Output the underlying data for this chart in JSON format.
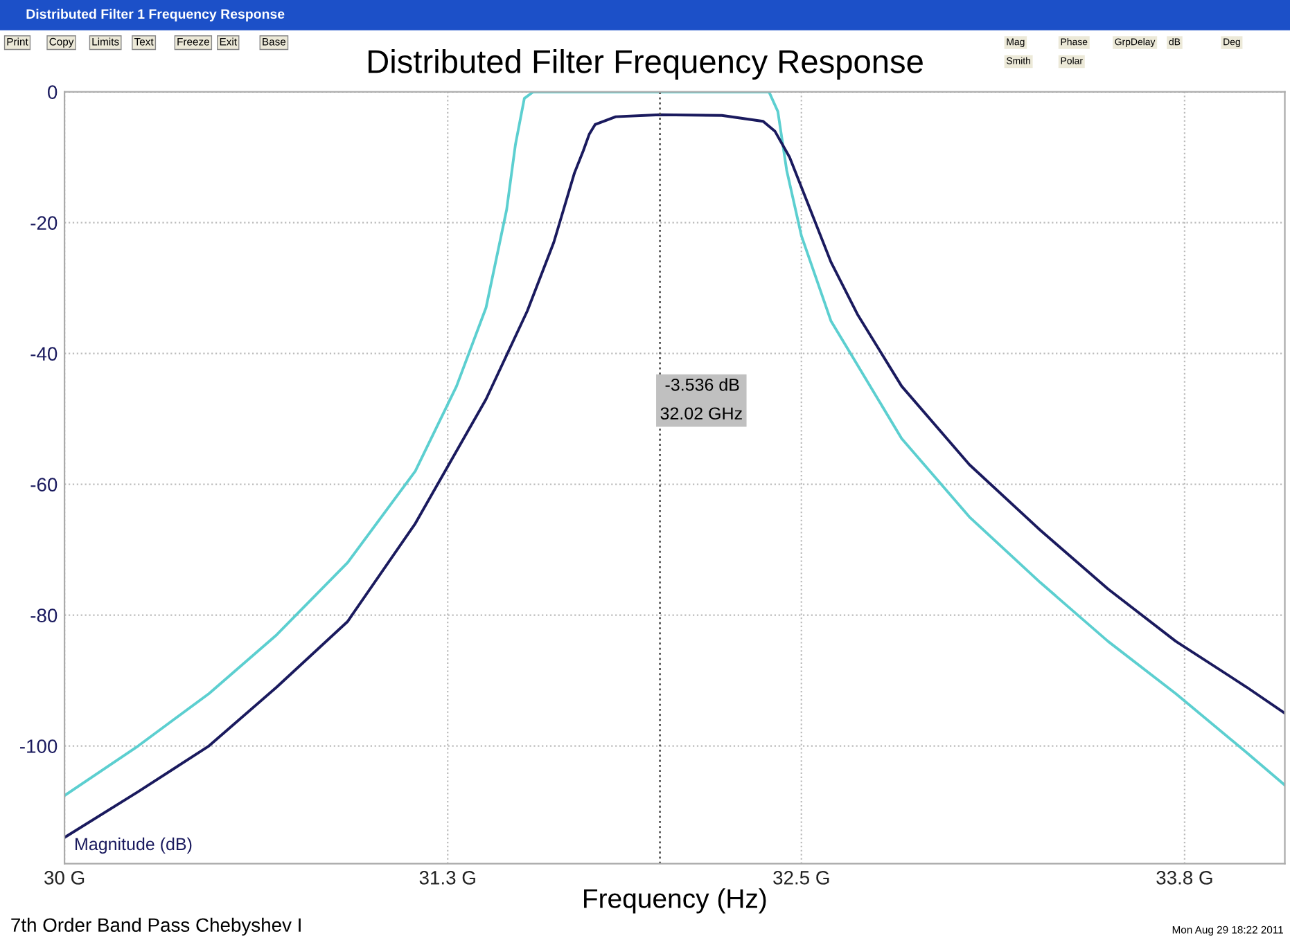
{
  "chart_data": {
    "type": "line",
    "title": "Distributed Filter Frequency Response",
    "xlabel": "Frequency (Hz)",
    "annotations": [
      "Distributed Filter 1 Frequency Response",
      "Print",
      "Copy",
      "Limits",
      "Text",
      "Freeze",
      "Exit",
      "Base",
      "Mag",
      "Phase",
      "GrpDelay",
      "dB",
      "Deg",
      "Smith",
      "Polar",
      "7th Order Band Pass Chebyshev I",
      "Mon Aug 29 18:22 2011"
    ],
    "xlim": [
      30,
      34.14
    ],
    "ylim": [
      -118,
      0
    ],
    "xticks": [
      {
        "value": 30,
        "label": "30 G"
      },
      {
        "value": 31.3,
        "label": "31.3 G"
      },
      {
        "value": 32.5,
        "label": "32.5 G"
      },
      {
        "value": 33.8,
        "label": "33.8 G"
      }
    ],
    "yticks": [
      0,
      -20,
      -40,
      -60,
      -80,
      -100
    ],
    "grid": true,
    "legend": false,
    "marker": "none",
    "line_style": "solid",
    "ref_lines": [
      {
        "axis": "x",
        "value": 32.02,
        "label": "-3.536 dB\n32.02 GHz",
        "color": "#555555",
        "line_style": "dotted"
      }
    ],
    "series": [
      {
        "name": null,
        "color": "#5ccfd0",
        "x": [
          30.0,
          30.25,
          30.49,
          30.72,
          30.96,
          31.19,
          31.33,
          31.43,
          31.5,
          31.53,
          31.56,
          31.59,
          32.39,
          32.42,
          32.45,
          32.5,
          32.6,
          32.84,
          33.07,
          33.31,
          33.54,
          33.77,
          34.01,
          34.14
        ],
        "values": [
          -107.6,
          -100,
          -92,
          -83,
          -72,
          -58,
          -45,
          -33,
          -18,
          -8,
          -1,
          0,
          0,
          -3,
          -12,
          -22,
          -35,
          -53,
          -65,
          -75,
          -84,
          -92,
          -101,
          -106
        ]
      },
      {
        "name": "Magnitude (dB)",
        "color": "#1a1a5e",
        "x": [
          30.0,
          30.25,
          30.49,
          30.72,
          30.96,
          31.19,
          31.43,
          31.57,
          31.66,
          31.73,
          31.76,
          31.78,
          31.8,
          31.87,
          32.02,
          32.23,
          32.37,
          32.41,
          32.46,
          32.53,
          32.6,
          32.69,
          32.84,
          33.07,
          33.31,
          33.54,
          33.77,
          34.01,
          34.14
        ],
        "values": [
          -114,
          -107,
          -100,
          -91,
          -81,
          -66,
          -47,
          -33.5,
          -23,
          -12.4,
          -9,
          -6.5,
          -5,
          -3.8,
          -3.5,
          -3.6,
          -4.5,
          -6,
          -10,
          -18,
          -26,
          -34,
          -45,
          -57,
          -67,
          -76,
          -84,
          -91,
          -95
        ]
      }
    ]
  }
}
